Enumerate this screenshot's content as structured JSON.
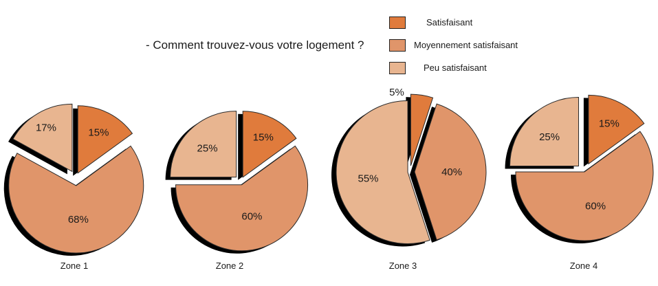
{
  "question": "- Comment trouvez-vous votre logement ?",
  "legend": [
    {
      "label": "Satisfaisant",
      "color": "#E07B3C"
    },
    {
      "label": "Moyennement satisfaisant",
      "color": "#E0956A"
    },
    {
      "label": "Peu satisfaisant",
      "color": "#E8B590"
    }
  ],
  "chart_data": [
    {
      "type": "pie",
      "title": "Zone 1",
      "categories": [
        "Satisfaisant",
        "Moyennement satisfaisant",
        "Peu satisfaisant"
      ],
      "values": [
        15,
        68,
        17
      ],
      "labels": [
        "15%",
        "68%",
        "17%"
      ]
    },
    {
      "type": "pie",
      "title": "Zone 2",
      "categories": [
        "Satisfaisant",
        "Moyennement satisfaisant",
        "Peu satisfaisant"
      ],
      "values": [
        15,
        60,
        25
      ],
      "labels": [
        "15%",
        "60%",
        "25%"
      ]
    },
    {
      "type": "pie",
      "title": "Zone 3",
      "categories": [
        "Satisfaisant",
        "Moyennement satisfaisant",
        "Peu satisfaisant"
      ],
      "values": [
        5,
        40,
        55
      ],
      "labels": [
        "5%",
        "40%",
        "55%"
      ]
    },
    {
      "type": "pie",
      "title": "Zone 4",
      "categories": [
        "Satisfaisant",
        "Moyennement satisfaisant",
        "Peu satisfaisant"
      ],
      "values": [
        15,
        60,
        25
      ],
      "labels": [
        "15%",
        "60%",
        "25%"
      ]
    }
  ]
}
